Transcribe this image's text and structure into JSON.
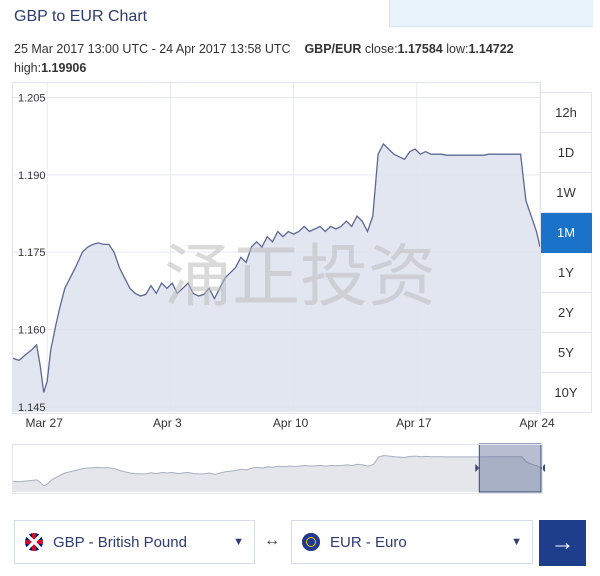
{
  "page": {
    "title": "GBP to EUR Chart",
    "range_text": "25 Mar 2017 13:00 UTC - 24 Apr 2017 13:58 UTC",
    "pair_label": "GBP/EUR",
    "close_label": "close:",
    "close_value": "1.17584",
    "low_label": "low:",
    "low_value": "1.14722",
    "high_label": "high:",
    "high_value": "1.19906"
  },
  "range_buttons": [
    {
      "label": "12h",
      "active": false
    },
    {
      "label": "1D",
      "active": false
    },
    {
      "label": "1W",
      "active": false
    },
    {
      "label": "1M",
      "active": true
    },
    {
      "label": "1Y",
      "active": false
    },
    {
      "label": "2Y",
      "active": false
    },
    {
      "label": "5Y",
      "active": false
    },
    {
      "label": "10Y",
      "active": false
    }
  ],
  "converter": {
    "from_label": "GBP - British Pound",
    "to_label": "EUR - Euro",
    "swap_symbol": "↔",
    "go_symbol": "→"
  },
  "watermark": "涌正投资",
  "colors": {
    "accent": "#1a73c8",
    "button": "#1e3e8c",
    "area_fill": "#dde2ee",
    "line": "#5c6894"
  },
  "chart_data": {
    "type": "area",
    "title": "GBP to EUR Chart",
    "xlabel": "",
    "ylabel": "",
    "xlim": [
      -2.0,
      28.0
    ],
    "ylim": [
      1.144,
      1.208
    ],
    "yticks": [
      1.145,
      1.16,
      1.175,
      1.19,
      1.205
    ],
    "ytick_labels": [
      "1.145",
      "1.160",
      "1.175",
      "1.190",
      "1.205"
    ],
    "xticks": [
      0,
      7,
      14,
      21,
      28
    ],
    "xtick_labels": [
      "Mar 27",
      "Apr 3",
      "Apr 10",
      "Apr 17",
      "Apr 24"
    ],
    "grid": true,
    "series": [
      {
        "x": [
          -2.0,
          -1.6,
          -1.2,
          -0.9,
          -0.6,
          -0.4,
          -0.2,
          0.0,
          0.2,
          0.5,
          0.7,
          1.0,
          1.3,
          1.6,
          2.0,
          2.3,
          2.6,
          2.9,
          3.2,
          3.5,
          3.8,
          4.1,
          4.4,
          4.7,
          5.0,
          5.3,
          5.6,
          5.9,
          6.2,
          6.5,
          6.8,
          7.1,
          7.4,
          7.7,
          8.0,
          8.3,
          8.6,
          8.9,
          9.2,
          9.5,
          9.8,
          10.1,
          10.4,
          10.7,
          11.0,
          11.3,
          11.6,
          11.9,
          12.2,
          12.5,
          12.8,
          13.1,
          13.4,
          13.7,
          14.0,
          14.3,
          14.6,
          14.9,
          15.2,
          15.5,
          15.8,
          16.1,
          16.4,
          16.7,
          17.0,
          17.3,
          17.6,
          17.9,
          18.2,
          18.5,
          18.8,
          19.1,
          19.4,
          19.7,
          20.0,
          20.3,
          20.6,
          20.9,
          21.2,
          21.5,
          21.8,
          22.1,
          22.4,
          22.7,
          23.0,
          23.3,
          23.6,
          23.9,
          24.2,
          24.5,
          24.8,
          25.1,
          25.4,
          25.7,
          26.0,
          26.3,
          26.6,
          26.9,
          27.2,
          27.5,
          27.8,
          28.0
        ],
        "y": [
          1.1545,
          1.154,
          1.1552,
          1.156,
          1.157,
          1.153,
          1.1478,
          1.15,
          1.156,
          1.161,
          1.164,
          1.168,
          1.17,
          1.172,
          1.175,
          1.176,
          1.1765,
          1.1768,
          1.1765,
          1.1765,
          1.175,
          1.172,
          1.17,
          1.168,
          1.167,
          1.1665,
          1.1668,
          1.1685,
          1.167,
          1.169,
          1.168,
          1.169,
          1.167,
          1.168,
          1.169,
          1.167,
          1.1665,
          1.1668,
          1.168,
          1.166,
          1.168,
          1.17,
          1.171,
          1.172,
          1.174,
          1.173,
          1.176,
          1.177,
          1.176,
          1.178,
          1.177,
          1.179,
          1.178,
          1.179,
          1.1785,
          1.179,
          1.18,
          1.179,
          1.1795,
          1.18,
          1.179,
          1.18,
          1.1795,
          1.18,
          1.181,
          1.18,
          1.182,
          1.181,
          1.179,
          1.182,
          1.194,
          1.196,
          1.195,
          1.194,
          1.1935,
          1.193,
          1.1945,
          1.195,
          1.194,
          1.1945,
          1.194,
          1.194,
          1.194,
          1.1938,
          1.1938,
          1.1938,
          1.1938,
          1.1938,
          1.1938,
          1.1938,
          1.1938,
          1.194,
          1.194,
          1.194,
          1.194,
          1.194,
          1.194,
          1.194,
          1.185,
          1.182,
          1.179,
          1.176
        ]
      }
    ]
  }
}
